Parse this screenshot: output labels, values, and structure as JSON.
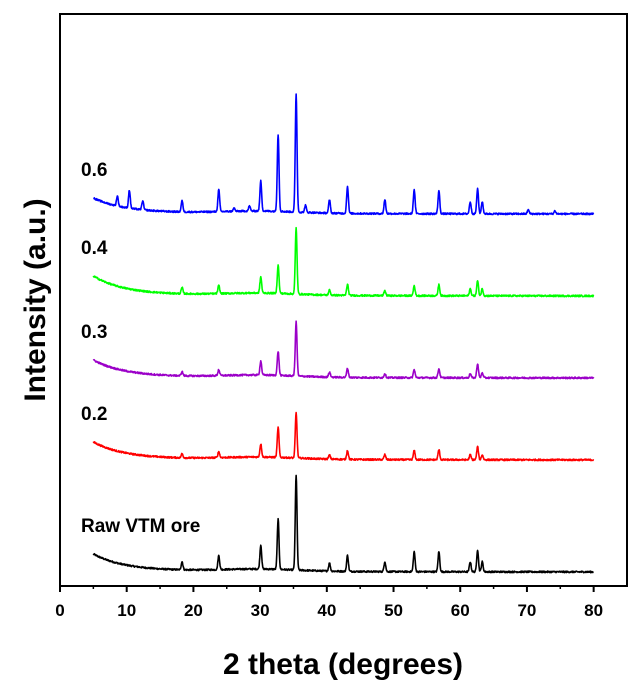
{
  "chart_data": {
    "type": "line",
    "title": "",
    "xlabel": "2 theta (degrees)",
    "ylabel": "Intensity (a.u.)",
    "xlim": [
      0,
      85
    ],
    "x_ticks": [
      "0",
      "10",
      "20",
      "30",
      "40",
      "50",
      "60",
      "70",
      "80"
    ],
    "x_tick_values": [
      0,
      10,
      20,
      30,
      40,
      50,
      60,
      70,
      80
    ],
    "y_ticks_shown": false,
    "grid": false,
    "legend": "none; each curve labeled at left",
    "baseline_units": "a.u.",
    "series": [
      {
        "name": "Raw VTM ore",
        "color": "#000000",
        "baseline": 0,
        "start_level": 16,
        "peaks": [
          [
            18.3,
            8
          ],
          [
            23.8,
            14
          ],
          [
            30.1,
            24
          ],
          [
            32.7,
            50
          ],
          [
            35.4,
            95
          ],
          [
            40.4,
            8
          ],
          [
            43.1,
            16
          ],
          [
            48.7,
            10
          ],
          [
            53.1,
            20
          ],
          [
            56.8,
            20
          ],
          [
            61.5,
            10
          ],
          [
            62.6,
            22
          ],
          [
            63.3,
            10
          ]
        ]
      },
      {
        "name": "0.2",
        "color": "#ff0000",
        "baseline": 112,
        "start_level": 16,
        "peaks": [
          [
            18.3,
            4
          ],
          [
            23.8,
            6
          ],
          [
            30.1,
            13
          ],
          [
            32.7,
            30
          ],
          [
            35.4,
            45
          ],
          [
            40.4,
            4
          ],
          [
            43.1,
            9
          ],
          [
            48.7,
            5
          ],
          [
            53.1,
            9
          ],
          [
            56.8,
            10
          ],
          [
            61.5,
            5
          ],
          [
            62.6,
            13
          ],
          [
            63.3,
            5
          ]
        ]
      },
      {
        "name": "0.3",
        "color": "#9b00c8",
        "baseline": 194,
        "start_level": 16,
        "peaks": [
          [
            18.3,
            4
          ],
          [
            23.8,
            6
          ],
          [
            30.1,
            14
          ],
          [
            32.7,
            24
          ],
          [
            35.4,
            54
          ],
          [
            40.4,
            5
          ],
          [
            43.1,
            9
          ],
          [
            48.7,
            4
          ],
          [
            53.1,
            8
          ],
          [
            56.8,
            9
          ],
          [
            61.5,
            4
          ],
          [
            62.6,
            14
          ],
          [
            63.3,
            5
          ]
        ]
      },
      {
        "name": "0.4",
        "color": "#00ff00",
        "baseline": 276,
        "start_level": 18,
        "peaks": [
          [
            18.3,
            6
          ],
          [
            23.8,
            8
          ],
          [
            30.1,
            16
          ],
          [
            32.7,
            28
          ],
          [
            35.4,
            66
          ],
          [
            40.4,
            5
          ],
          [
            43.1,
            11
          ],
          [
            48.7,
            5
          ],
          [
            53.1,
            10
          ],
          [
            56.8,
            11
          ],
          [
            61.5,
            7
          ],
          [
            62.6,
            15
          ],
          [
            63.3,
            7
          ]
        ]
      },
      {
        "name": "0.6",
        "color": "#0000ff",
        "baseline": 358,
        "start_level": 14,
        "peaks": [
          [
            8.6,
            10
          ],
          [
            10.4,
            18
          ],
          [
            12.4,
            9
          ],
          [
            18.3,
            11
          ],
          [
            23.8,
            22
          ],
          [
            26.1,
            3
          ],
          [
            28.4,
            5
          ],
          [
            30.1,
            30
          ],
          [
            32.7,
            77
          ],
          [
            35.4,
            118
          ],
          [
            36.8,
            7
          ],
          [
            40.4,
            13
          ],
          [
            43.1,
            27
          ],
          [
            48.7,
            14
          ],
          [
            53.1,
            24
          ],
          [
            56.8,
            23
          ],
          [
            61.5,
            12
          ],
          [
            62.6,
            25
          ],
          [
            63.3,
            12
          ],
          [
            70.2,
            4
          ],
          [
            74.2,
            3
          ]
        ]
      }
    ]
  }
}
